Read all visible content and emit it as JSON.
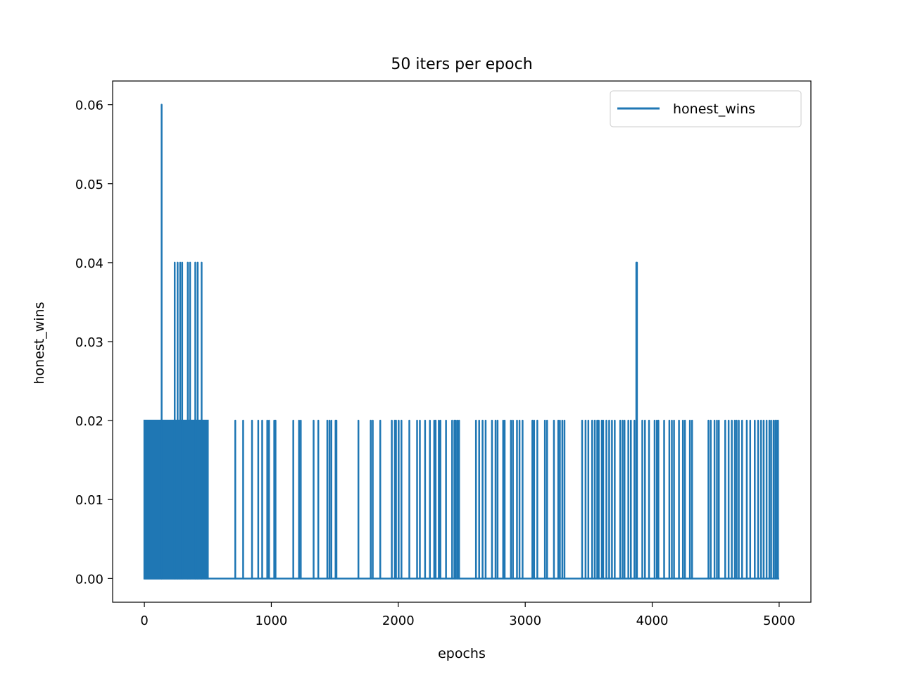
{
  "chart_data": {
    "type": "line",
    "title": "50 iters per epoch",
    "xlabel": "epochs",
    "ylabel": "honest_wins",
    "xlim": [
      -250,
      5250
    ],
    "ylim": [
      -0.003,
      0.063
    ],
    "x_ticks": [
      0,
      1000,
      2000,
      3000,
      4000,
      5000
    ],
    "x_tick_labels": [
      "0",
      "1000",
      "2000",
      "3000",
      "4000",
      "5000"
    ],
    "y_ticks": [
      0.0,
      0.01,
      0.02,
      0.03,
      0.04,
      0.05,
      0.06
    ],
    "y_tick_labels": [
      "0.00",
      "0.01",
      "0.02",
      "0.03",
      "0.04",
      "0.05",
      "0.06"
    ],
    "grid": false,
    "legend": {
      "position": "upper-right",
      "entries": [
        {
          "name": "honest_wins",
          "color": "#1f77b4"
        }
      ]
    },
    "series": [
      {
        "name": "honest_wins",
        "color": "#1f77b4",
        "baseline": 0.0,
        "x_range": [
          0,
          5000
        ],
        "spikes": [
          [
            136,
            0.06
          ],
          [
            239,
            0.04
          ],
          [
            262,
            0.04
          ],
          [
            282,
            0.04
          ],
          [
            298,
            0.04
          ],
          [
            342,
            0.04
          ],
          [
            360,
            0.04
          ],
          [
            401,
            0.04
          ],
          [
            420,
            0.04
          ],
          [
            451,
            0.04
          ],
          [
            3875,
            0.04
          ],
          [
            3880,
            0.04
          ],
          [
            716,
            0.02
          ],
          [
            778,
            0.02
          ],
          [
            848,
            0.02
          ],
          [
            897,
            0.02
          ],
          [
            928,
            0.02
          ],
          [
            968,
            0.02
          ],
          [
            982,
            0.02
          ],
          [
            1023,
            0.02
          ],
          [
            1033,
            0.02
          ],
          [
            1173,
            0.02
          ],
          [
            1218,
            0.02
          ],
          [
            1232,
            0.02
          ],
          [
            1333,
            0.02
          ],
          [
            1370,
            0.02
          ],
          [
            1441,
            0.02
          ],
          [
            1458,
            0.02
          ],
          [
            1473,
            0.02
          ],
          [
            1506,
            0.02
          ],
          [
            1513,
            0.02
          ],
          [
            1686,
            0.02
          ],
          [
            1783,
            0.02
          ],
          [
            1799,
            0.02
          ],
          [
            1858,
            0.02
          ],
          [
            1949,
            0.02
          ],
          [
            1973,
            0.02
          ],
          [
            1982,
            0.02
          ],
          [
            2003,
            0.02
          ],
          [
            2025,
            0.02
          ],
          [
            2087,
            0.02
          ],
          [
            2148,
            0.02
          ],
          [
            2170,
            0.02
          ],
          [
            2211,
            0.02
          ],
          [
            2249,
            0.02
          ],
          [
            2283,
            0.02
          ],
          [
            2294,
            0.02
          ],
          [
            2319,
            0.02
          ],
          [
            2332,
            0.02
          ],
          [
            2376,
            0.02
          ],
          [
            2424,
            0.02
          ],
          [
            2442,
            0.02
          ],
          [
            2453,
            0.02
          ],
          [
            2466,
            0.02
          ],
          [
            2479,
            0.02
          ],
          [
            2612,
            0.02
          ],
          [
            2637,
            0.02
          ],
          [
            2664,
            0.02
          ],
          [
            2688,
            0.02
          ],
          [
            2738,
            0.02
          ],
          [
            2766,
            0.02
          ],
          [
            2782,
            0.02
          ],
          [
            2826,
            0.02
          ],
          [
            2838,
            0.02
          ],
          [
            2887,
            0.02
          ],
          [
            2903,
            0.02
          ],
          [
            2935,
            0.02
          ],
          [
            2955,
            0.02
          ],
          [
            2979,
            0.02
          ],
          [
            3056,
            0.02
          ],
          [
            3070,
            0.02
          ],
          [
            3095,
            0.02
          ],
          [
            3155,
            0.02
          ],
          [
            3172,
            0.02
          ],
          [
            3226,
            0.02
          ],
          [
            3260,
            0.02
          ],
          [
            3273,
            0.02
          ],
          [
            3292,
            0.02
          ],
          [
            3309,
            0.02
          ],
          [
            3448,
            0.02
          ],
          [
            3475,
            0.02
          ],
          [
            3497,
            0.02
          ],
          [
            3527,
            0.02
          ],
          [
            3548,
            0.02
          ],
          [
            3567,
            0.02
          ],
          [
            3579,
            0.02
          ],
          [
            3603,
            0.02
          ],
          [
            3614,
            0.02
          ],
          [
            3639,
            0.02
          ],
          [
            3661,
            0.02
          ],
          [
            3683,
            0.02
          ],
          [
            3705,
            0.02
          ],
          [
            3748,
            0.02
          ],
          [
            3767,
            0.02
          ],
          [
            3782,
            0.02
          ],
          [
            3812,
            0.02
          ],
          [
            3832,
            0.02
          ],
          [
            3860,
            0.02
          ],
          [
            3922,
            0.02
          ],
          [
            3943,
            0.02
          ],
          [
            3975,
            0.02
          ],
          [
            4019,
            0.02
          ],
          [
            4037,
            0.02
          ],
          [
            4049,
            0.02
          ],
          [
            4094,
            0.02
          ],
          [
            4135,
            0.02
          ],
          [
            4155,
            0.02
          ],
          [
            4172,
            0.02
          ],
          [
            4211,
            0.02
          ],
          [
            4242,
            0.02
          ],
          [
            4258,
            0.02
          ],
          [
            4297,
            0.02
          ],
          [
            4314,
            0.02
          ],
          [
            4443,
            0.02
          ],
          [
            4461,
            0.02
          ],
          [
            4491,
            0.02
          ],
          [
            4510,
            0.02
          ],
          [
            4525,
            0.02
          ],
          [
            4575,
            0.02
          ],
          [
            4602,
            0.02
          ],
          [
            4627,
            0.02
          ],
          [
            4651,
            0.02
          ],
          [
            4665,
            0.02
          ],
          [
            4682,
            0.02
          ],
          [
            4708,
            0.02
          ],
          [
            4745,
            0.02
          ],
          [
            4772,
            0.02
          ],
          [
            4808,
            0.02
          ],
          [
            4834,
            0.02
          ],
          [
            4857,
            0.02
          ],
          [
            4878,
            0.02
          ],
          [
            4901,
            0.02
          ],
          [
            4923,
            0.02
          ],
          [
            4937,
            0.02
          ],
          [
            4956,
            0.02
          ],
          [
            4970,
            0.02
          ],
          [
            4983,
            0.02
          ],
          [
            4991,
            0.02
          ]
        ],
        "dense_block": {
          "x_range": [
            0,
            500
          ],
          "value": 0.02,
          "step": 2
        }
      }
    ]
  }
}
